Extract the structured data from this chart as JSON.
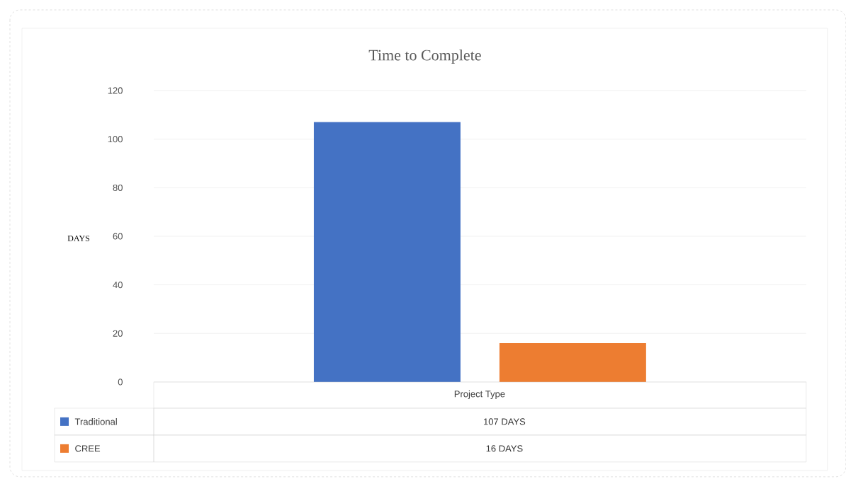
{
  "chart_data": {
    "type": "bar",
    "title": "Time to Complete",
    "ylabel": "DAYS",
    "categories": [
      "Project Type"
    ],
    "series": [
      {
        "name": "Traditional",
        "color": "#4472c4",
        "values": [
          107
        ]
      },
      {
        "name": "CREE",
        "color": "#ed7d31",
        "values": [
          16
        ]
      }
    ],
    "annotations": [
      "107 DAYS",
      "16 DAYS"
    ],
    "ylim": [
      0,
      120
    ],
    "yticks": [
      0,
      20,
      40,
      60,
      80,
      100,
      120
    ],
    "grid": "y",
    "legend": "bottom"
  }
}
